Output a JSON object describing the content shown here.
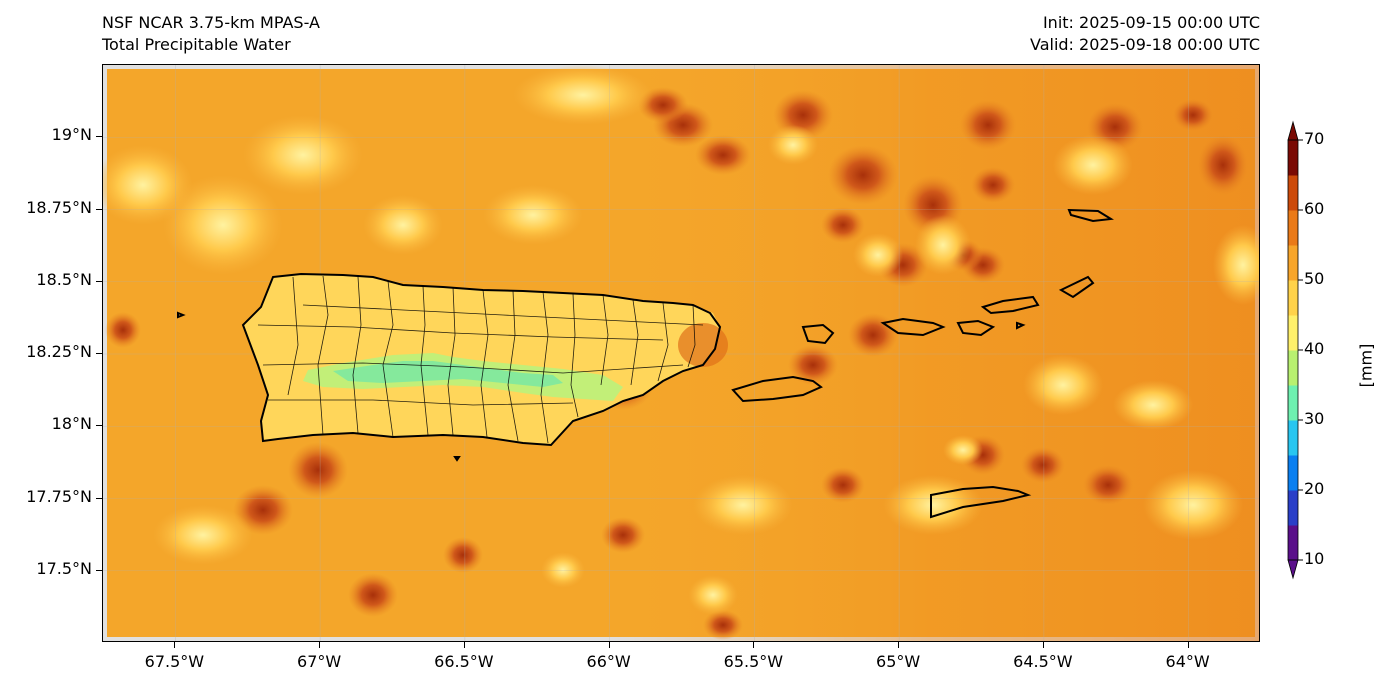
{
  "header": {
    "model": "NSF NCAR 3.75-km MPAS-A",
    "field": "Total Precipitable Water",
    "init": "Init: 2025-09-15 00:00 UTC",
    "valid": "Valid: 2025-09-18 00:00 UTC"
  },
  "map": {
    "lon_range": [
      -67.75,
      -63.75
    ],
    "lat_range": [
      17.25,
      19.25
    ],
    "y_ticks": [
      "19°N",
      "18.75°N",
      "18.5°N",
      "18.25°N",
      "18°N",
      "17.75°N",
      "17.5°N"
    ],
    "x_ticks": [
      "67.5°W",
      "67°W",
      "66.5°W",
      "66°W",
      "65.5°W",
      "65°W",
      "64.5°W",
      "64°W"
    ],
    "background_color": "#f4a62a"
  },
  "colorbar": {
    "unit": "[mm]",
    "ticks": [
      "70",
      "60",
      "50",
      "40",
      "30",
      "20",
      "10"
    ],
    "range": [
      10,
      70
    ],
    "colors": [
      "#5a0f8a",
      "#2a3fc8",
      "#0a7ff0",
      "#28c6f0",
      "#6ef0b0",
      "#b8f070",
      "#fff06a",
      "#ffd24a",
      "#f7a52a",
      "#ea7a18",
      "#cc4a0a",
      "#7a0a04"
    ]
  }
}
